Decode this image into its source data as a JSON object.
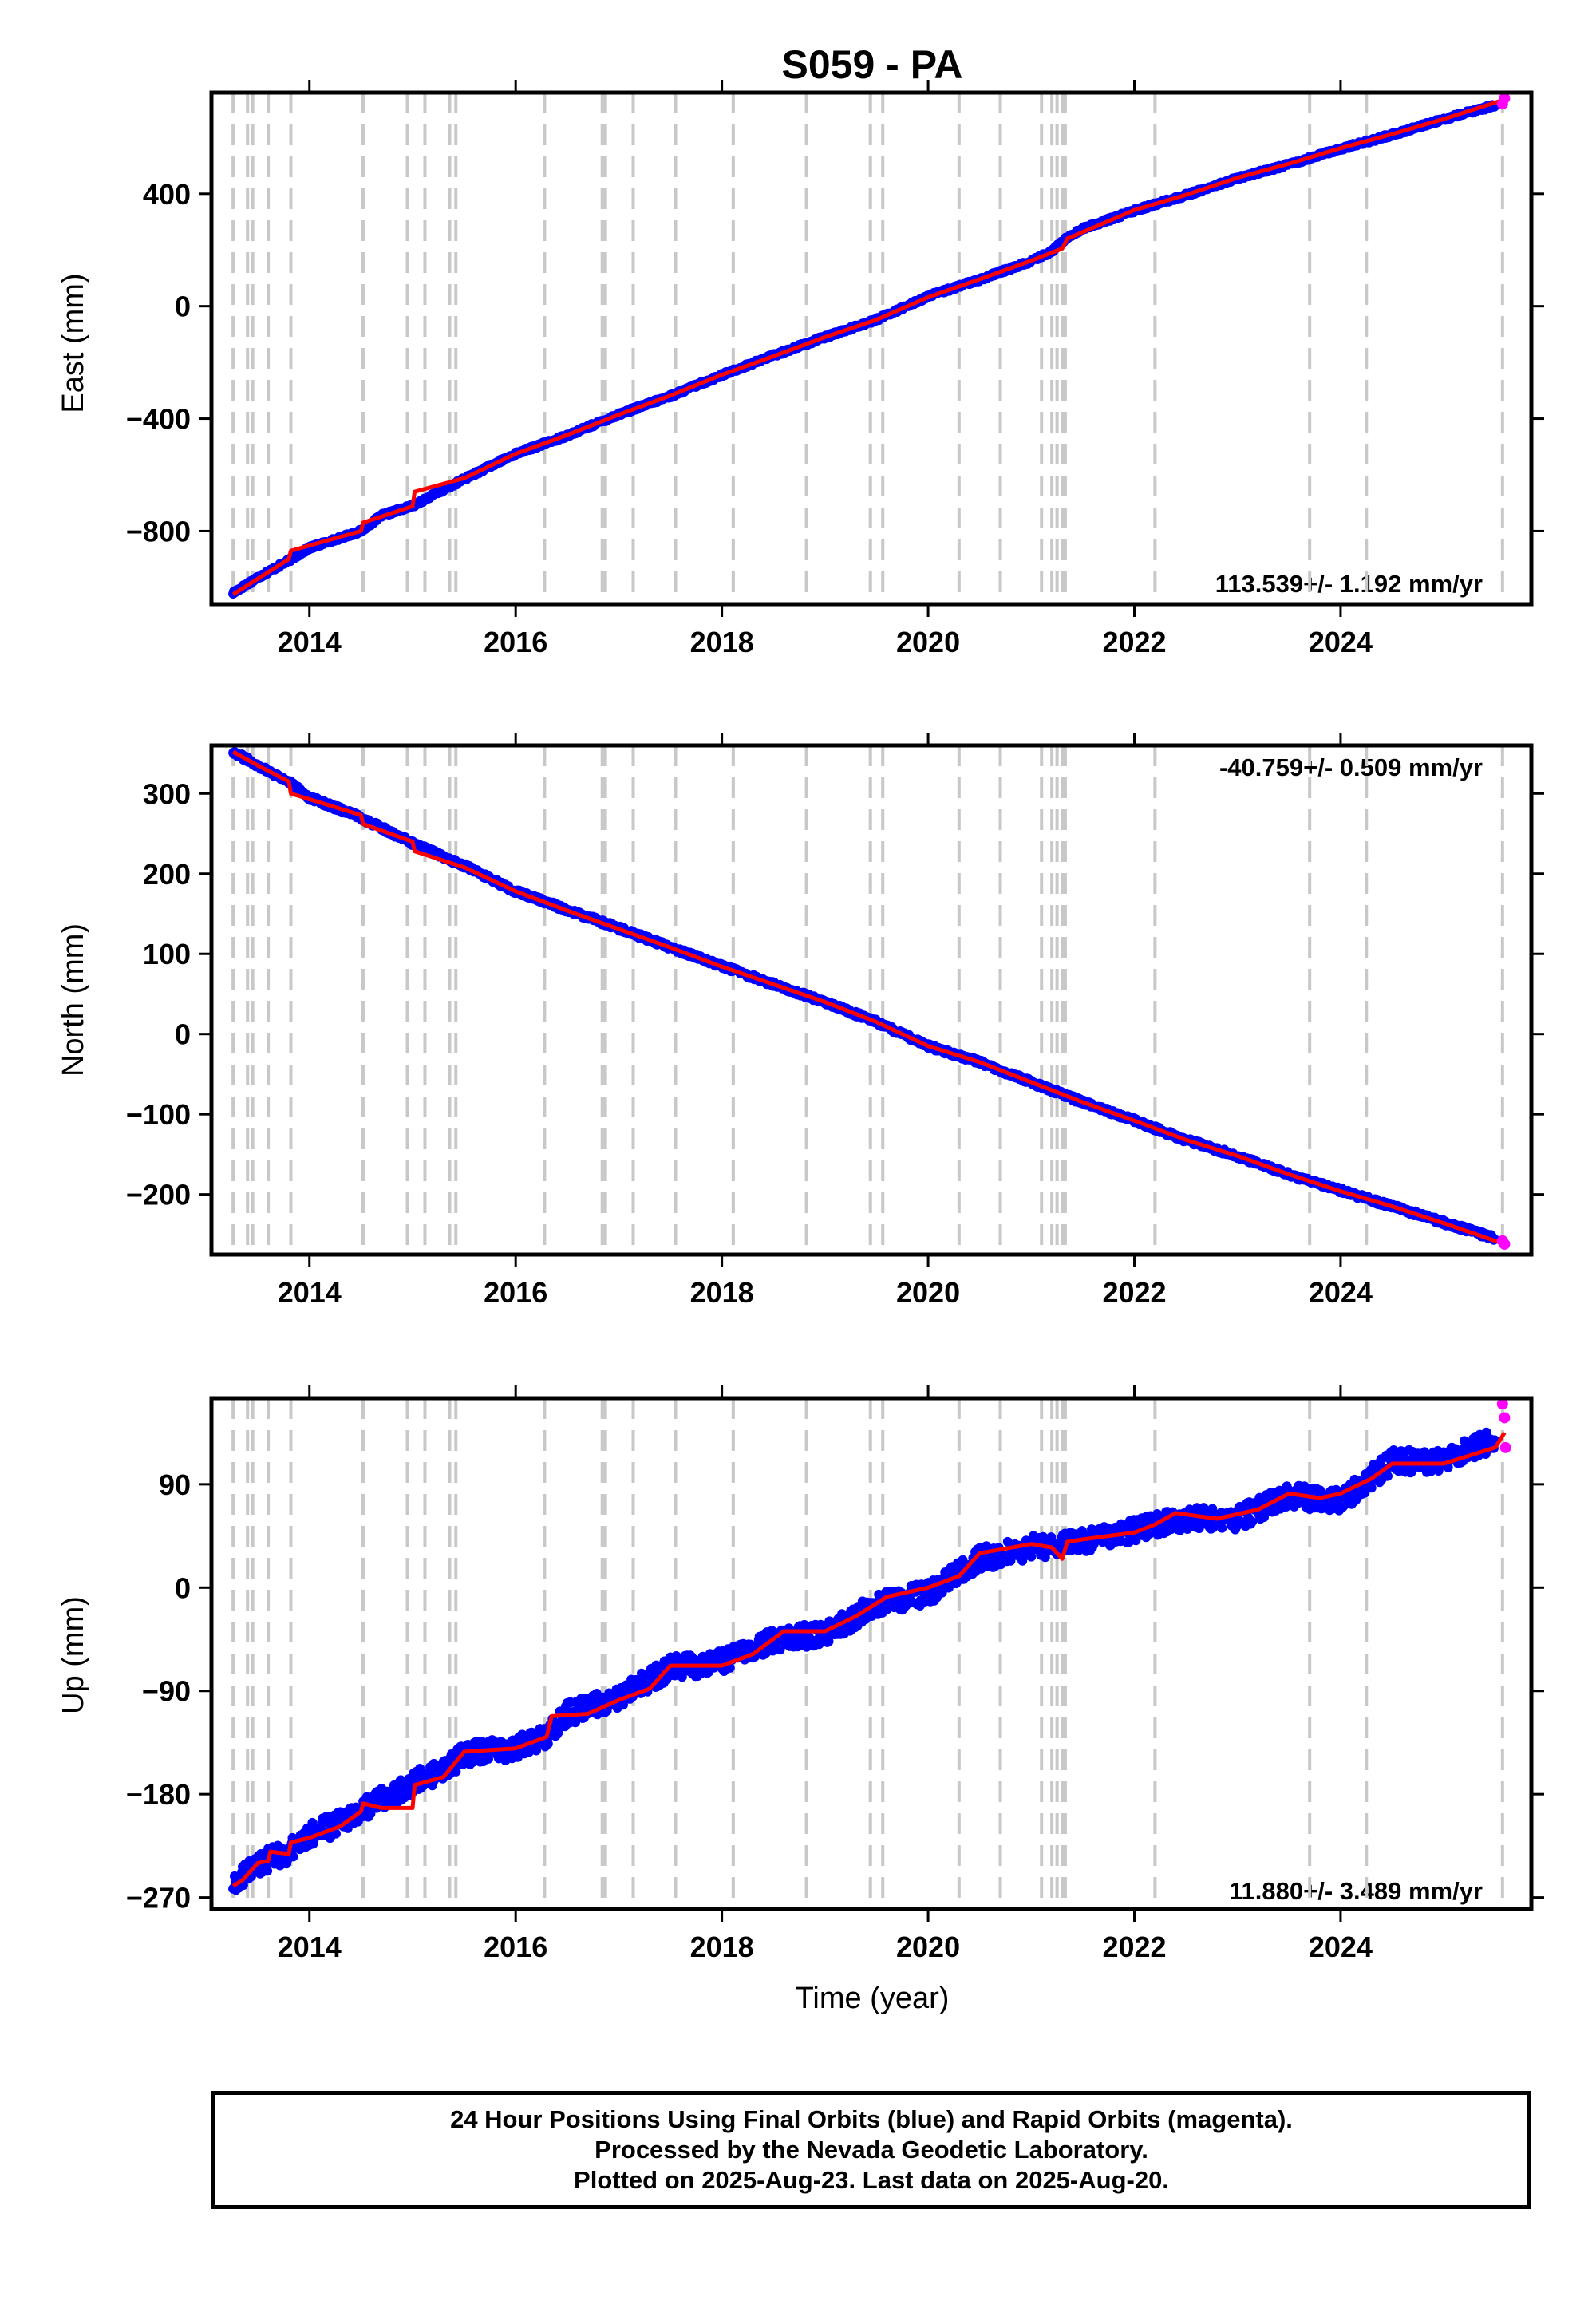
{
  "title": "S059 - PA",
  "chart_data": [
    {
      "type": "scatter",
      "ylabel": "East (mm)",
      "xlim": [
        2013.05,
        2025.85
      ],
      "ylim": [
        -1060,
        760
      ],
      "yticks": [
        400,
        0,
        -400,
        -800
      ],
      "ytick_labels": [
        "400",
        "0",
        "−400",
        "−800"
      ],
      "xticks": [
        2014,
        2016,
        2018,
        2020,
        2022,
        2024
      ],
      "rate": "113.539+/- 1.192 mm/yr",
      "rate_position": "bottom-right",
      "series": [
        {
          "role": "final",
          "color": "#0000ff",
          "x": [
            2013.26,
            2013.5,
            2013.8,
            2014.0,
            2014.5,
            2014.7,
            2015.0,
            2015.5,
            2016.0,
            2016.5,
            2017.0,
            2017.5,
            2018.0,
            2018.5,
            2019.0,
            2019.5,
            2020.0,
            2020.5,
            2021.0,
            2021.2,
            2021.35,
            2021.5,
            2022.0,
            2022.5,
            2023.0,
            2023.5,
            2024.0,
            2024.5,
            2025.0,
            2025.5
          ],
          "y": [
            -1020,
            -965,
            -905,
            -860,
            -800,
            -745,
            -710,
            -615,
            -525,
            -460,
            -385,
            -320,
            -245,
            -175,
            -110,
            -48,
            35,
            95,
            160,
            195,
            245,
            275,
            340,
            395,
            455,
            505,
            560,
            610,
            665,
            715
          ]
        },
        {
          "role": "rapid",
          "color": "#ff00ff",
          "x": [
            2025.57,
            2025.59
          ],
          "y": [
            720,
            740
          ]
        },
        {
          "role": "fit",
          "color": "#ff0000",
          "x": [
            2013.26,
            2013.8,
            2013.82,
            2014.5,
            2014.52,
            2015.0,
            2015.02,
            2015.5,
            2016.0,
            2016.5,
            2017.0,
            2017.5,
            2018.0,
            2018.5,
            2019.0,
            2019.5,
            2020.0,
            2020.5,
            2021.0,
            2021.3,
            2021.35,
            2022.0,
            2022.5,
            2023.0,
            2023.5,
            2024.0,
            2024.5,
            2025.0,
            2025.59
          ],
          "y": [
            -1025,
            -900,
            -870,
            -800,
            -770,
            -712,
            -660,
            -612,
            -525,
            -458,
            -386,
            -318,
            -244,
            -178,
            -110,
            -48,
            32,
            96,
            162,
            205,
            240,
            342,
            396,
            457,
            507,
            562,
            612,
            666,
            735
          ]
        }
      ]
    },
    {
      "type": "scatter",
      "ylabel": "North (mm)",
      "xlim": [
        2013.05,
        2025.85
      ],
      "ylim": [
        -275,
        360
      ],
      "yticks": [
        300,
        200,
        100,
        0,
        -100,
        -200
      ],
      "ytick_labels": [
        "300",
        "200",
        "100",
        "0",
        "−100",
        "−200"
      ],
      "xticks": [
        2014,
        2016,
        2018,
        2020,
        2022,
        2024
      ],
      "rate": "-40.759+/- 0.509 mm/yr",
      "rate_position": "top-right",
      "series": [
        {
          "role": "final",
          "color": "#0000ff",
          "x": [
            2013.26,
            2013.5,
            2013.8,
            2014.0,
            2014.5,
            2015.0,
            2015.5,
            2016.0,
            2016.5,
            2017.0,
            2017.5,
            2018.0,
            2018.5,
            2019.0,
            2019.5,
            2020.0,
            2020.5,
            2021.0,
            2021.5,
            2022.0,
            2022.5,
            2023.0,
            2023.5,
            2024.0,
            2024.5,
            2025.0,
            2025.5
          ],
          "y": [
            352,
            335,
            315,
            295,
            270,
            238,
            210,
            178,
            155,
            132,
            108,
            85,
            62,
            40,
            15,
            -15,
            -35,
            -60,
            -85,
            -108,
            -132,
            -152,
            -175,
            -195,
            -215,
            -235,
            -255
          ]
        },
        {
          "role": "rapid",
          "color": "#ff00ff",
          "x": [
            2025.57,
            2025.59
          ],
          "y": [
            -258,
            -262
          ]
        },
        {
          "role": "fit",
          "color": "#ff0000",
          "x": [
            2013.26,
            2013.5,
            2013.8,
            2013.82,
            2014.5,
            2014.52,
            2015.0,
            2015.02,
            2015.5,
            2016.0,
            2016.5,
            2017.0,
            2017.5,
            2018.0,
            2018.5,
            2019.0,
            2019.5,
            2020.0,
            2020.5,
            2021.0,
            2021.5,
            2022.0,
            2022.5,
            2023.0,
            2023.5,
            2024.0,
            2024.5,
            2025.0,
            2025.59
          ],
          "y": [
            352,
            335,
            315,
            300,
            273,
            262,
            240,
            228,
            208,
            178,
            154,
            131,
            108,
            84,
            62,
            40,
            15,
            -15,
            -35,
            -60,
            -85,
            -108,
            -132,
            -152,
            -175,
            -196,
            -215,
            -236,
            -262
          ]
        }
      ]
    },
    {
      "type": "scatter",
      "ylabel": "Up (mm)",
      "xlim": [
        2013.05,
        2025.85
      ],
      "ylim": [
        -280,
        165
      ],
      "yticks": [
        90,
        0,
        -90,
        -180,
        -270
      ],
      "ytick_labels": [
        "90",
        "0",
        "−90",
        "−180",
        "−270"
      ],
      "xticks": [
        2014,
        2016,
        2018,
        2020,
        2022,
        2024
      ],
      "rate": "11.880+/- 3.489 mm/yr",
      "rate_position": "bottom-right",
      "series": [
        {
          "role": "final",
          "color": "#0000ff",
          "x": [
            2013.26,
            2013.5,
            2013.8,
            2014.0,
            2014.3,
            2014.5,
            2014.7,
            2015.0,
            2015.3,
            2015.5,
            2016.0,
            2016.3,
            2016.5,
            2017.0,
            2017.5,
            2018.0,
            2018.5,
            2019.0,
            2019.5,
            2020.0,
            2020.5,
            2021.0,
            2021.5,
            2022.0,
            2022.5,
            2023.0,
            2023.5,
            2024.0,
            2024.5,
            2025.0,
            2025.5
          ],
          "y": [
            -260,
            -240,
            -230,
            -215,
            -205,
            -195,
            -185,
            -170,
            -160,
            -145,
            -140,
            -130,
            -110,
            -95,
            -70,
            -65,
            -45,
            -40,
            -15,
            -5,
            25,
            35,
            40,
            50,
            60,
            60,
            80,
            75,
            110,
            110,
            130
          ]
        },
        {
          "role": "rapid",
          "color": "#ff00ff",
          "x": [
            2025.57,
            2025.59,
            2025.6
          ],
          "y": [
            160,
            148,
            122
          ]
        },
        {
          "role": "fit",
          "color": "#ff0000",
          "x": [
            2013.26,
            2013.35,
            2013.5,
            2013.6,
            2013.62,
            2013.8,
            2013.82,
            2014.0,
            2014.3,
            2014.5,
            2014.52,
            2014.7,
            2015.0,
            2015.02,
            2015.3,
            2015.5,
            2016.0,
            2016.3,
            2016.35,
            2016.7,
            2017.0,
            2017.3,
            2017.5,
            2018.0,
            2018.3,
            2018.6,
            2019.0,
            2019.3,
            2019.6,
            2020.0,
            2020.3,
            2020.5,
            2021.0,
            2021.2,
            2021.3,
            2021.35,
            2021.5,
            2022.0,
            2022.2,
            2022.4,
            2022.8,
            2023.2,
            2023.5,
            2023.8,
            2024.0,
            2024.3,
            2024.5,
            2025.0,
            2025.5,
            2025.59
          ],
          "y": [
            -260,
            -255,
            -240,
            -238,
            -230,
            -232,
            -222,
            -218,
            -208,
            -195,
            -188,
            -192,
            -192,
            -172,
            -165,
            -143,
            -140,
            -130,
            -112,
            -110,
            -98,
            -88,
            -68,
            -68,
            -58,
            -38,
            -38,
            -25,
            -8,
            0,
            10,
            30,
            38,
            35,
            25,
            40,
            42,
            48,
            55,
            65,
            60,
            68,
            82,
            78,
            82,
            95,
            108,
            108,
            122,
            135
          ]
        }
      ]
    }
  ],
  "offset_years": [
    2013.26,
    2013.4,
    2013.45,
    2013.6,
    2013.82,
    2014.52,
    2014.95,
    2015.12,
    2015.36,
    2015.42,
    2016.28,
    2016.84,
    2016.87,
    2017.14,
    2017.55,
    2018.11,
    2018.82,
    2019.44,
    2019.56,
    2020.3,
    2020.7,
    2021.1,
    2021.2,
    2021.25,
    2021.3,
    2021.33,
    2022.2,
    2023.7,
    2024.25,
    2025.57
  ],
  "xlabel": "Time (year)",
  "caption": {
    "line1": "24 Hour Positions Using Final Orbits (blue) and Rapid Orbits (magenta).",
    "line2": "Processed by the Nevada Geodetic Laboratory.",
    "line3": "Plotted on 2025-Aug-23. Last data on 2025-Aug-20."
  }
}
